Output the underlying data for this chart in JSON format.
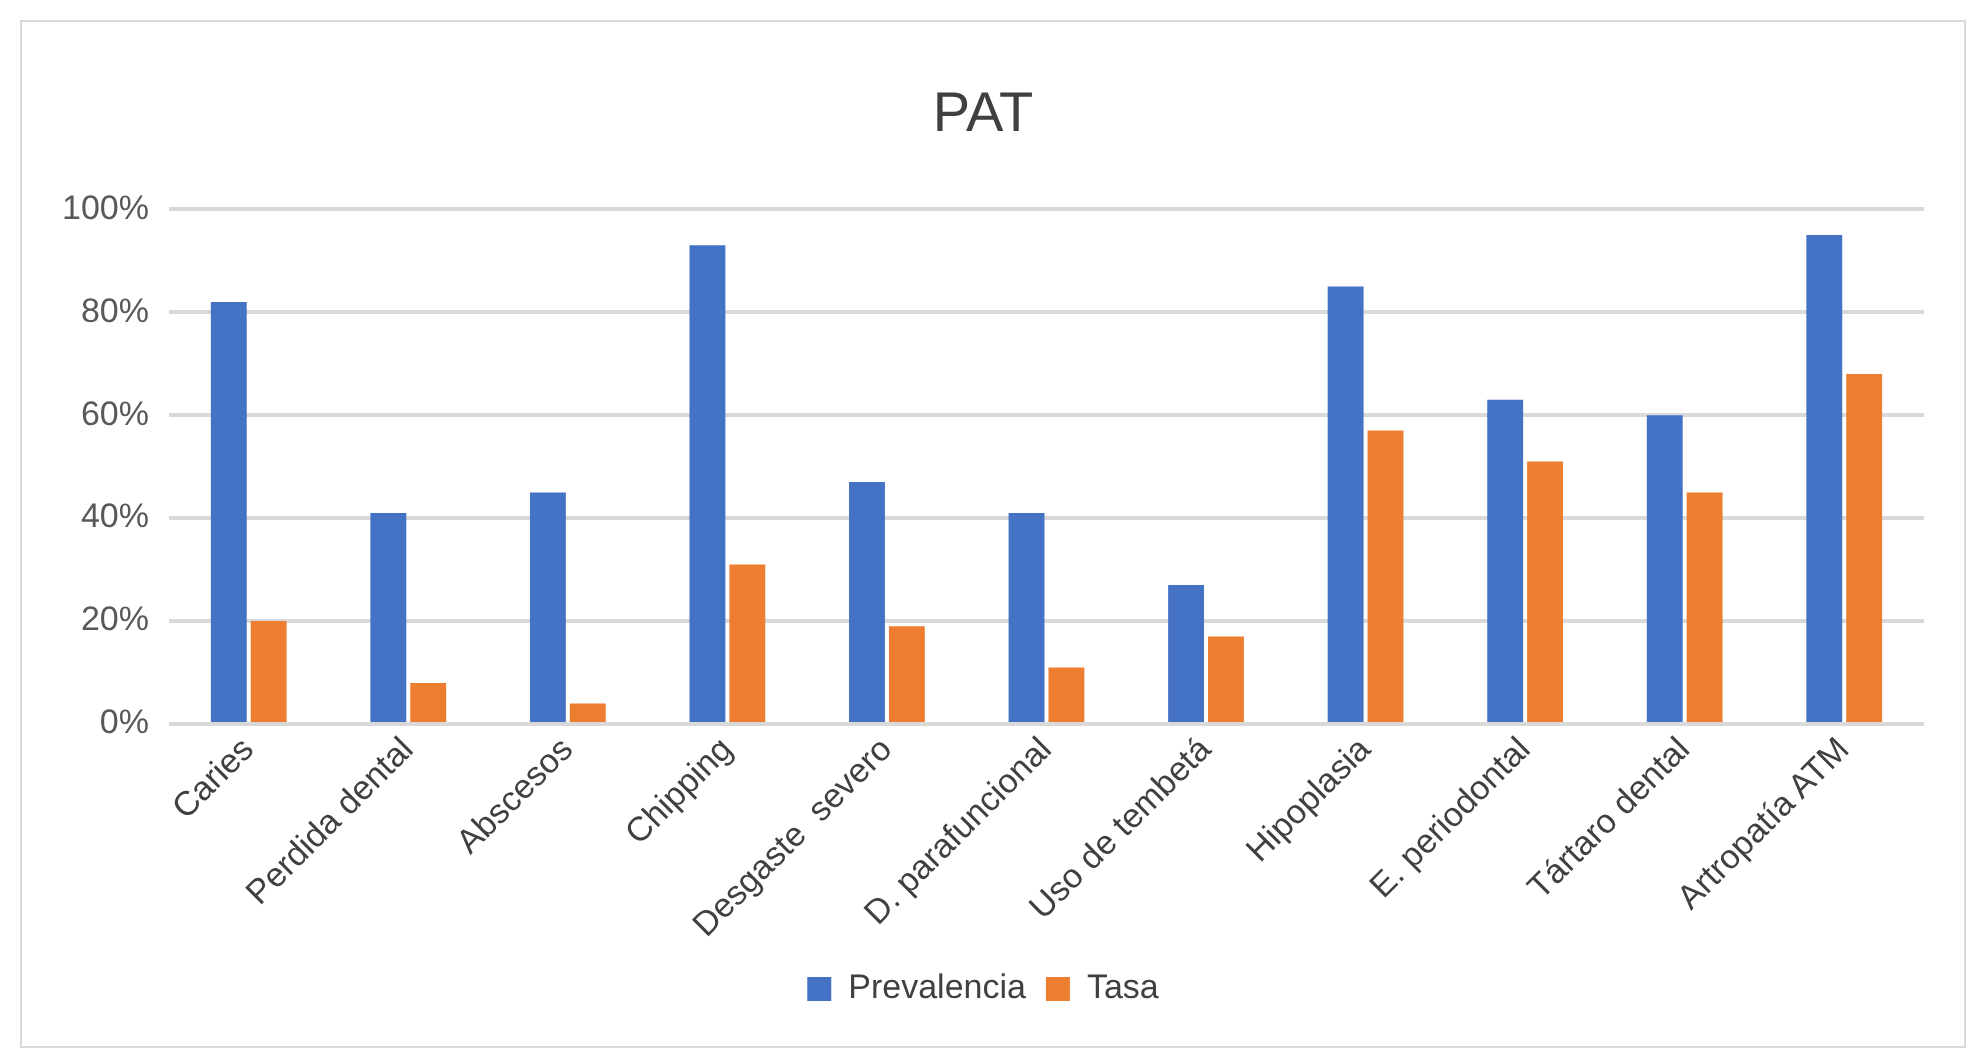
{
  "chart_data": {
    "type": "bar",
    "title": "PAT",
    "categories": [
      "Caries",
      "Perdida dental",
      "Abscesos",
      "Chipping",
      "Desgaste  severo",
      "D. parafuncional",
      "Uso de tembetá",
      "Hipoplasia",
      "E. periodontal",
      "Tártaro dental",
      "Artropatía ATM"
    ],
    "series": [
      {
        "name": "Prevalencia",
        "color": "#4472c4",
        "values": [
          82,
          41,
          45,
          93,
          47,
          41,
          27,
          85,
          63,
          60,
          95
        ]
      },
      {
        "name": "Tasa",
        "color": "#ed7d31",
        "values": [
          20,
          8,
          4,
          31,
          19,
          11,
          17,
          57,
          51,
          45,
          68
        ]
      }
    ],
    "ylim": [
      0,
      100
    ],
    "yticks": [
      {
        "value": 0,
        "label": "0%"
      },
      {
        "value": 20,
        "label": "20%"
      },
      {
        "value": 40,
        "label": "40%"
      },
      {
        "value": 60,
        "label": "60%"
      },
      {
        "value": 80,
        "label": "80%"
      },
      {
        "value": 100,
        "label": "100%"
      }
    ],
    "grid": "y",
    "legend": "bottom"
  }
}
